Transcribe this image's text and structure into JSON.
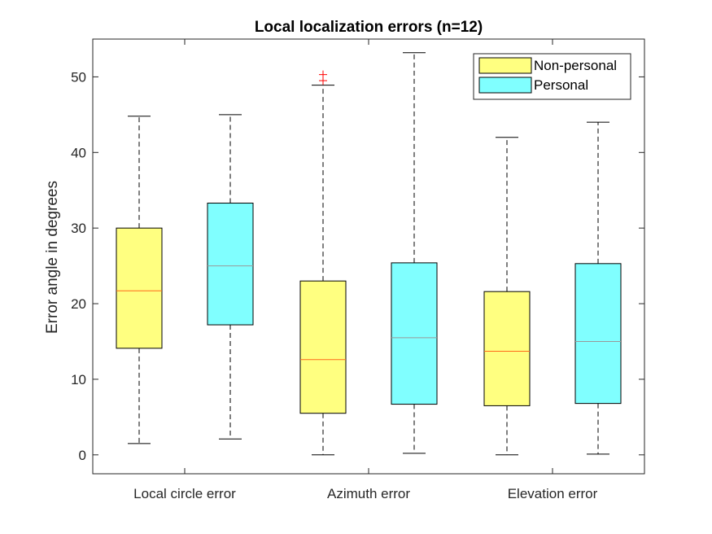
{
  "chart_data": {
    "type": "boxplot",
    "title": "Local localization errors (n=12)",
    "xlabel": "",
    "ylabel": "Error angle in degrees",
    "ylim": [
      -2.5,
      55
    ],
    "yticks": [
      0,
      10,
      20,
      30,
      40,
      50
    ],
    "categories": [
      "Local circle error",
      "Azimuth error",
      "Elevation error"
    ],
    "legend_position": "top-right",
    "grid": false,
    "colors": {
      "Non-personal": "#ffff80",
      "Personal": "#80ffff",
      "median_non_personal": "#ff6a1a",
      "median_personal": "#999999",
      "outlier": "#ff0000"
    },
    "series": [
      {
        "name": "Non-personal",
        "boxes": [
          {
            "whisker_low": 1.5,
            "q1": 14.1,
            "median": 21.7,
            "q3": 30.0,
            "whisker_high": 44.8,
            "outliers": []
          },
          {
            "whisker_low": 0.0,
            "q1": 5.5,
            "median": 12.6,
            "q3": 23.0,
            "whisker_high": 48.9,
            "outliers": [
              49.5,
              50.3
            ]
          },
          {
            "whisker_low": 0.0,
            "q1": 6.5,
            "median": 13.7,
            "q3": 21.6,
            "whisker_high": 42.0,
            "outliers": []
          }
        ]
      },
      {
        "name": "Personal",
        "boxes": [
          {
            "whisker_low": 2.1,
            "q1": 17.2,
            "median": 25.0,
            "q3": 33.3,
            "whisker_high": 45.0,
            "outliers": []
          },
          {
            "whisker_low": 0.2,
            "q1": 6.7,
            "median": 15.5,
            "q3": 25.4,
            "whisker_high": 53.2,
            "outliers": []
          },
          {
            "whisker_low": 0.1,
            "q1": 6.8,
            "median": 15.0,
            "q3": 25.3,
            "whisker_high": 44.0,
            "outliers": []
          }
        ]
      }
    ]
  }
}
